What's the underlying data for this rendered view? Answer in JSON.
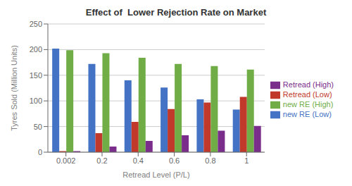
{
  "chart_data": {
    "type": "bar",
    "title": "Effect of  Lower Rejection Rate on Market",
    "xlabel": "Retread Level (P/L)",
    "ylabel": "Tyres Sold (Million Units)",
    "categories": [
      "0.002",
      "0.2",
      "0.4",
      "0.6",
      "0.8",
      "1"
    ],
    "series": [
      {
        "name": "new RE (Low)",
        "color": "#4472C4",
        "values": [
          202,
          172,
          140,
          126,
          103,
          83
        ]
      },
      {
        "name": "Retread (Low)",
        "color": "#C0392B",
        "values": [
          2,
          37,
          59,
          84,
          97,
          108
        ]
      },
      {
        "name": "new RE (High)",
        "color": "#70AD47",
        "values": [
          199,
          193,
          184,
          172,
          168,
          161
        ]
      },
      {
        "name": "Retread (High)",
        "color": "#7B2D8B",
        "values": [
          2,
          11,
          22,
          33,
          42,
          51
        ]
      }
    ],
    "ylim": [
      0,
      250
    ],
    "yticks": [
      0,
      50,
      100,
      150,
      200,
      250
    ],
    "grid": true,
    "legend": "right"
  }
}
